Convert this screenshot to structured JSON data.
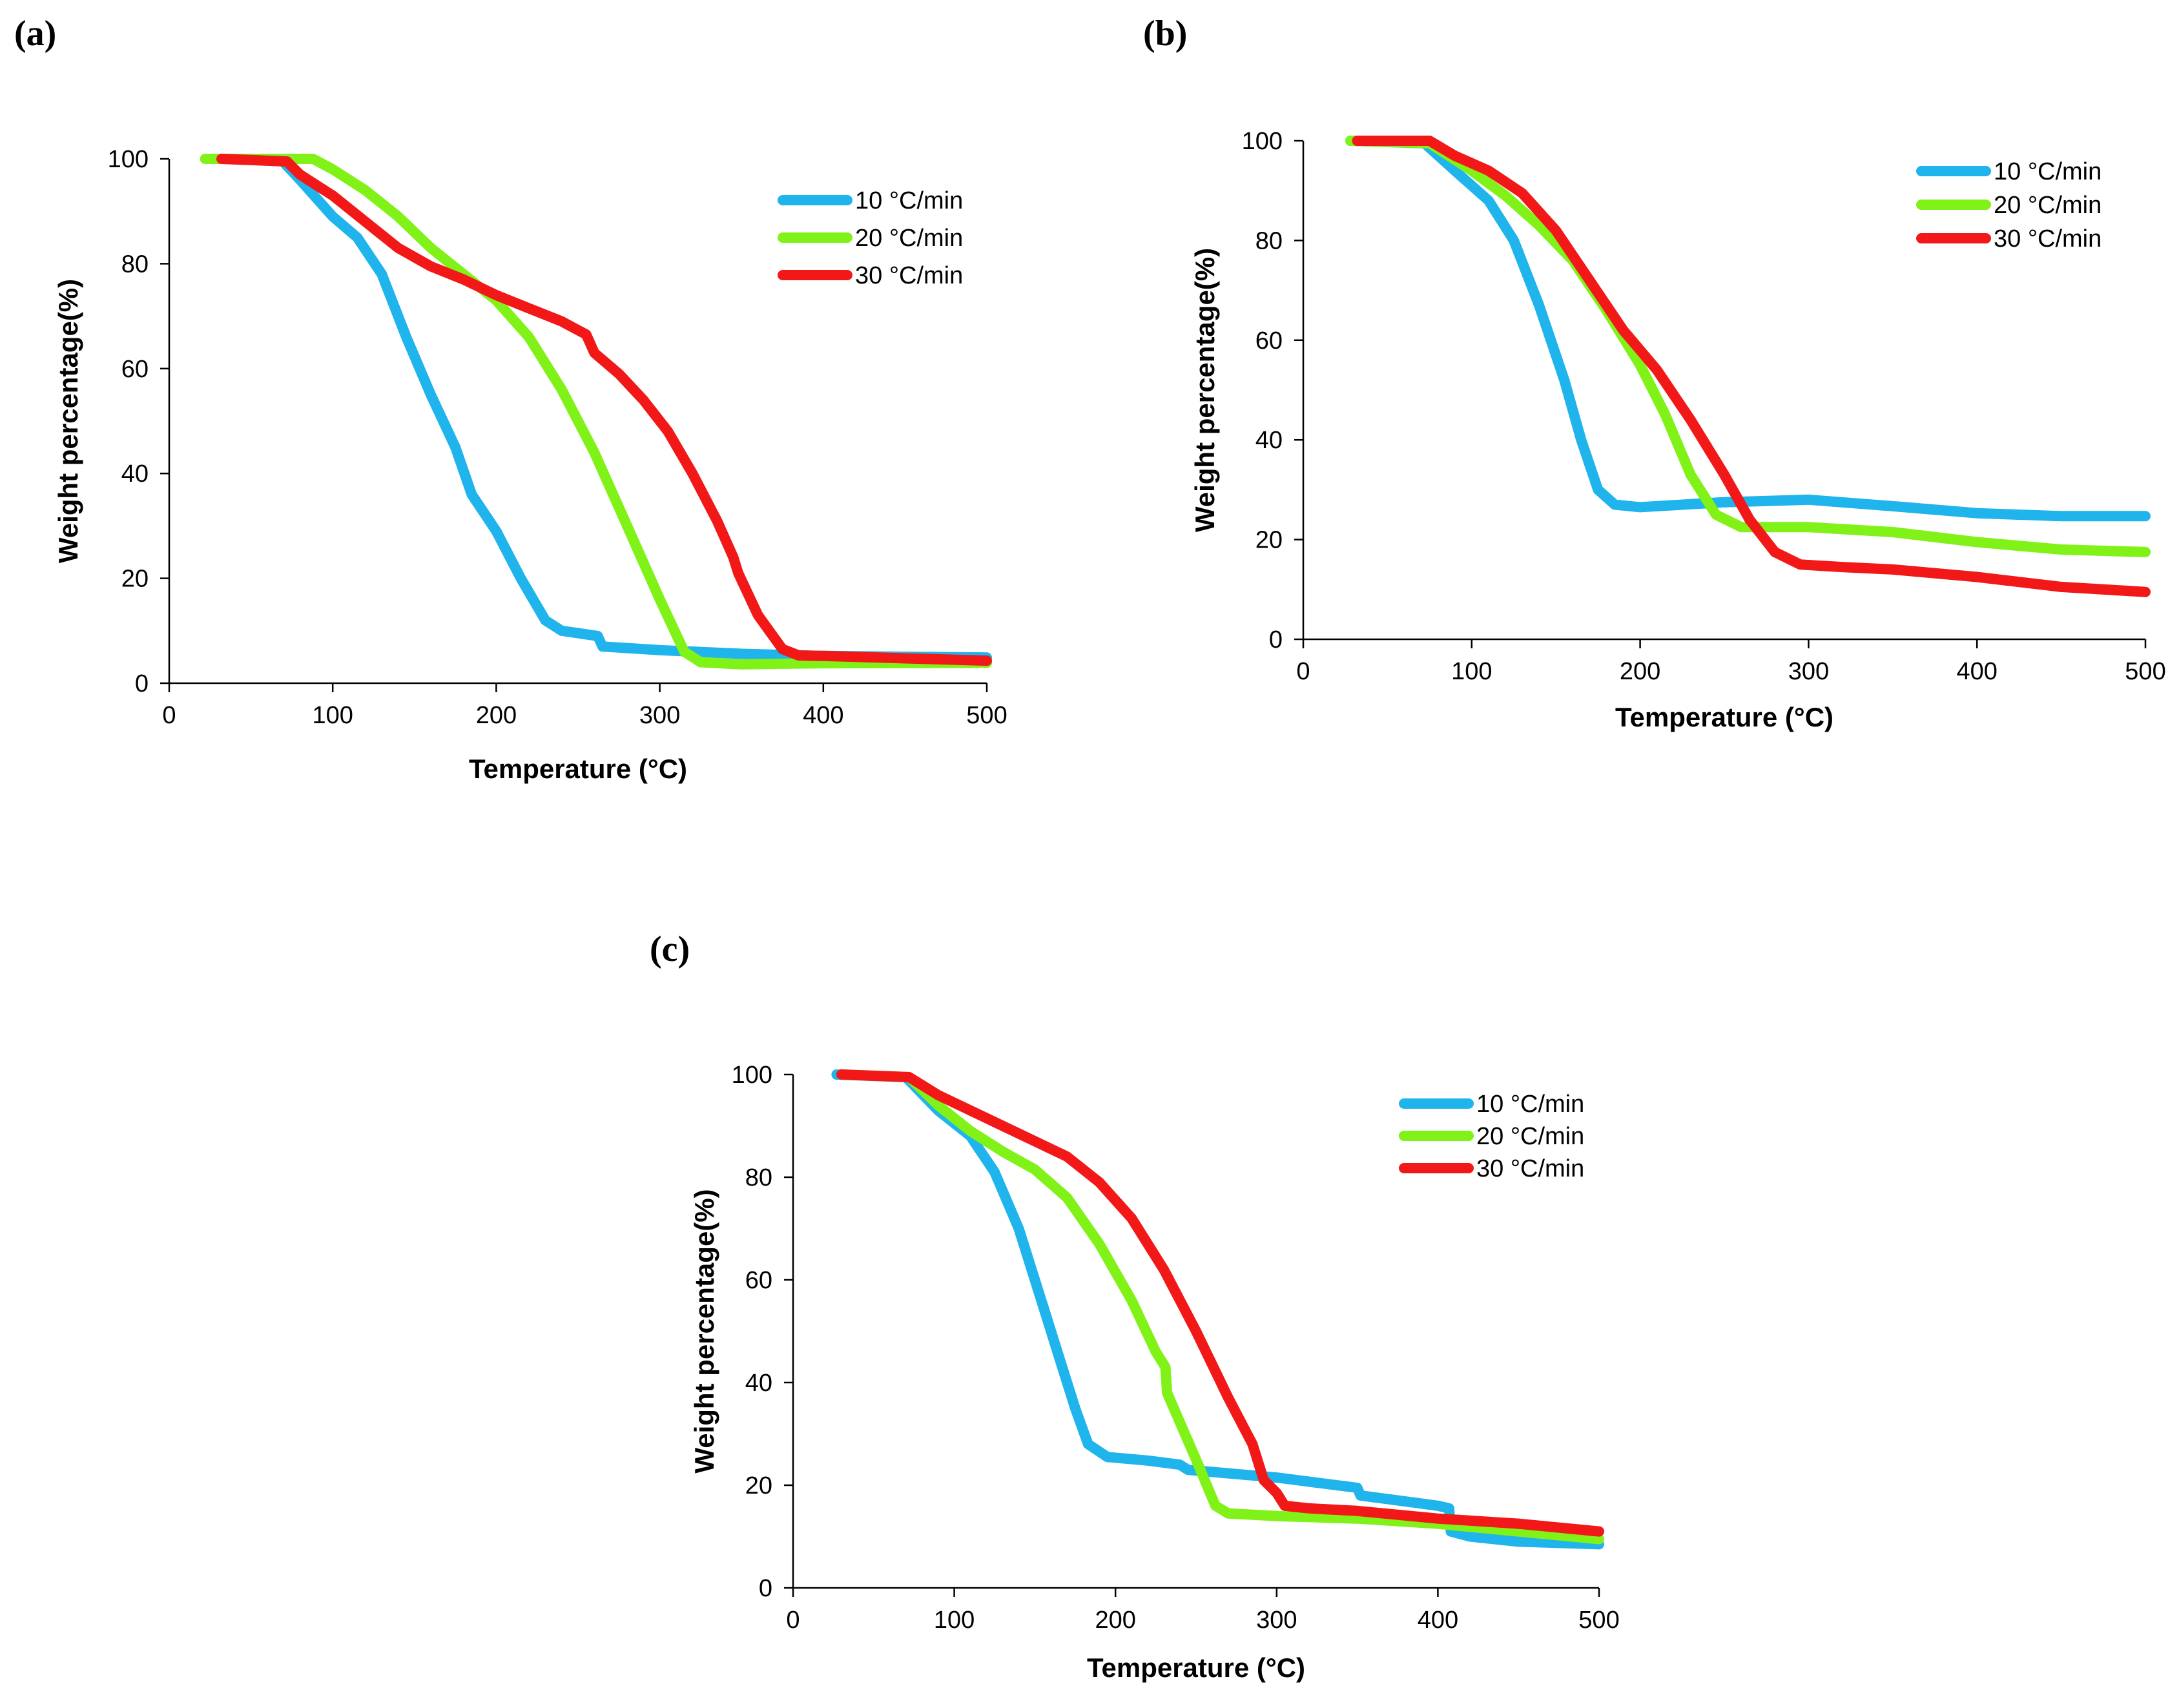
{
  "chart_data": [
    {
      "type": "line",
      "panel_label": "(a)",
      "xlabel": "Temperature (°C)",
      "ylabel": "Weight percentage(%)",
      "xlim": [
        0,
        500
      ],
      "ylim": [
        0,
        100
      ],
      "xticks": [
        0,
        100,
        200,
        300,
        400,
        500
      ],
      "yticks": [
        0,
        20,
        40,
        60,
        80,
        100
      ],
      "grid": false,
      "legend_position": "top-right",
      "series": [
        {
          "name": "10 °C/min",
          "color": "#1FB4EC",
          "points": [
            [
              68,
              100
            ],
            [
              80,
              96
            ],
            [
              100,
              89
            ],
            [
              115,
              85
            ],
            [
              130,
              78
            ],
            [
              145,
              66
            ],
            [
              160,
              55
            ],
            [
              175,
              45
            ],
            [
              185,
              36
            ],
            [
              200,
              29
            ],
            [
              215,
              20
            ],
            [
              230,
              12
            ],
            [
              240,
              10
            ],
            [
              262,
              9
            ],
            [
              265,
              7
            ],
            [
              300,
              6.3
            ],
            [
              350,
              5.6
            ],
            [
              400,
              5.2
            ],
            [
              500,
              4.9
            ]
          ]
        },
        {
          "name": "20 °C/min",
          "color": "#80F218",
          "points": [
            [
              22,
              100
            ],
            [
              88,
              100
            ],
            [
              100,
              98
            ],
            [
              120,
              94
            ],
            [
              140,
              89
            ],
            [
              160,
              83
            ],
            [
              180,
              78
            ],
            [
              200,
              73
            ],
            [
              220,
              66
            ],
            [
              240,
              56
            ],
            [
              260,
              44
            ],
            [
              280,
              30
            ],
            [
              300,
              16
            ],
            [
              315,
              6
            ],
            [
              325,
              4
            ],
            [
              350,
              3.6
            ],
            [
              400,
              3.8
            ],
            [
              500,
              3.9
            ]
          ]
        },
        {
          "name": "30 °C/min",
          "color": "#F21818",
          "points": [
            [
              32,
              100
            ],
            [
              72,
              99.5
            ],
            [
              80,
              97
            ],
            [
              100,
              93
            ],
            [
              120,
              88
            ],
            [
              140,
              83
            ],
            [
              160,
              79.5
            ],
            [
              180,
              77
            ],
            [
              200,
              74
            ],
            [
              220,
              71.5
            ],
            [
              240,
              69
            ],
            [
              255,
              66.5
            ],
            [
              260,
              63
            ],
            [
              275,
              59
            ],
            [
              290,
              54
            ],
            [
              305,
              48
            ],
            [
              320,
              40
            ],
            [
              335,
              31
            ],
            [
              345,
              24
            ],
            [
              348,
              21
            ],
            [
              360,
              13
            ],
            [
              375,
              6.5
            ],
            [
              385,
              5.3
            ],
            [
              400,
              5.2
            ],
            [
              500,
              4.3
            ]
          ]
        }
      ]
    },
    {
      "type": "line",
      "panel_label": "(b)",
      "xlabel": "Temperature (°C)",
      "ylabel": "Weight percentage(%)",
      "xlim": [
        0,
        500
      ],
      "ylim": [
        0,
        100
      ],
      "xticks": [
        0,
        100,
        200,
        300,
        400,
        500
      ],
      "yticks": [
        0,
        20,
        40,
        60,
        80,
        100
      ],
      "grid": false,
      "legend_position": "top-right",
      "series": [
        {
          "name": "10 °C/min",
          "color": "#1FB4EC",
          "points": [
            [
              28,
              100
            ],
            [
              72,
              99.5
            ],
            [
              90,
              94
            ],
            [
              110,
              88
            ],
            [
              125,
              80
            ],
            [
              140,
              67
            ],
            [
              155,
              52
            ],
            [
              165,
              40
            ],
            [
              175,
              30
            ],
            [
              185,
              27
            ],
            [
              200,
              26.5
            ],
            [
              250,
              27.5
            ],
            [
              300,
              28
            ],
            [
              350,
              26.7
            ],
            [
              400,
              25.3
            ],
            [
              450,
              24.7
            ],
            [
              500,
              24.7
            ]
          ]
        },
        {
          "name": "20 °C/min",
          "color": "#80F218",
          "points": [
            [
              28,
              100
            ],
            [
              75,
              99.5
            ],
            [
              100,
              94
            ],
            [
              120,
              89
            ],
            [
              140,
              83
            ],
            [
              160,
              76
            ],
            [
              180,
              66
            ],
            [
              200,
              55
            ],
            [
              215,
              45
            ],
            [
              230,
              33
            ],
            [
              245,
              25
            ],
            [
              260,
              22.5
            ],
            [
              300,
              22.5
            ],
            [
              350,
              21.5
            ],
            [
              400,
              19.5
            ],
            [
              450,
              18
            ],
            [
              500,
              17.5
            ]
          ]
        },
        {
          "name": "30 °C/min",
          "color": "#F21818",
          "points": [
            [
              32,
              100
            ],
            [
              75,
              100
            ],
            [
              90,
              97
            ],
            [
              110,
              94
            ],
            [
              130,
              89.5
            ],
            [
              150,
              82
            ],
            [
              170,
              72
            ],
            [
              190,
              62
            ],
            [
              210,
              54
            ],
            [
              230,
              44
            ],
            [
              250,
              33
            ],
            [
              265,
              24
            ],
            [
              280,
              17.5
            ],
            [
              295,
              15
            ],
            [
              320,
              14.5
            ],
            [
              350,
              14
            ],
            [
              400,
              12.5
            ],
            [
              450,
              10.5
            ],
            [
              500,
              9.5
            ]
          ]
        }
      ]
    },
    {
      "type": "line",
      "panel_label": "(c)",
      "xlabel": "Temperature (°C)",
      "ylabel": "Weight percentage(%)",
      "xlim": [
        0,
        500
      ],
      "ylim": [
        0,
        100
      ],
      "xticks": [
        0,
        100,
        200,
        300,
        400,
        500
      ],
      "yticks": [
        0,
        20,
        40,
        60,
        80,
        100
      ],
      "grid": false,
      "legend_position": "top-right",
      "series": [
        {
          "name": "10 °C/min",
          "color": "#1FB4EC",
          "points": [
            [
              27,
              100
            ],
            [
              70,
              99.5
            ],
            [
              90,
              93
            ],
            [
              110,
              88
            ],
            [
              125,
              81
            ],
            [
              140,
              70
            ],
            [
              155,
              55
            ],
            [
              165,
              45
            ],
            [
              175,
              35
            ],
            [
              183,
              28
            ],
            [
              195,
              25.5
            ],
            [
              220,
              24.8
            ],
            [
              240,
              24
            ],
            [
              245,
              23
            ],
            [
              300,
              21.5
            ],
            [
              350,
              19.5
            ],
            [
              352,
              18
            ],
            [
              400,
              16
            ],
            [
              407,
              15.5
            ],
            [
              408,
              11
            ],
            [
              420,
              10
            ],
            [
              450,
              9
            ],
            [
              500,
              8.5
            ]
          ]
        },
        {
          "name": "20 °C/min",
          "color": "#80F218",
          "points": [
            [
              30,
              100
            ],
            [
              72,
              99.5
            ],
            [
              90,
              94
            ],
            [
              110,
              89
            ],
            [
              130,
              85
            ],
            [
              150,
              81.5
            ],
            [
              170,
              76
            ],
            [
              190,
              67
            ],
            [
              210,
              56
            ],
            [
              225,
              46
            ],
            [
              231,
              43
            ],
            [
              232,
              38
            ],
            [
              250,
              25
            ],
            [
              262,
              16
            ],
            [
              270,
              14.5
            ],
            [
              300,
              14
            ],
            [
              350,
              13.5
            ],
            [
              400,
              12.5
            ],
            [
              450,
              11
            ],
            [
              500,
              9.5
            ]
          ]
        },
        {
          "name": "30 °C/min",
          "color": "#F21818",
          "points": [
            [
              30,
              100
            ],
            [
              72,
              99.5
            ],
            [
              90,
              96
            ],
            [
              110,
              93
            ],
            [
              130,
              90
            ],
            [
              150,
              87
            ],
            [
              170,
              84
            ],
            [
              190,
              79
            ],
            [
              210,
              72
            ],
            [
              230,
              62
            ],
            [
              250,
              50
            ],
            [
              270,
              37
            ],
            [
              285,
              28
            ],
            [
              292,
              21
            ],
            [
              300,
              18.5
            ],
            [
              305,
              16
            ],
            [
              320,
              15.5
            ],
            [
              350,
              15
            ],
            [
              400,
              13.5
            ],
            [
              450,
              12.5
            ],
            [
              500,
              11
            ]
          ]
        }
      ]
    }
  ]
}
